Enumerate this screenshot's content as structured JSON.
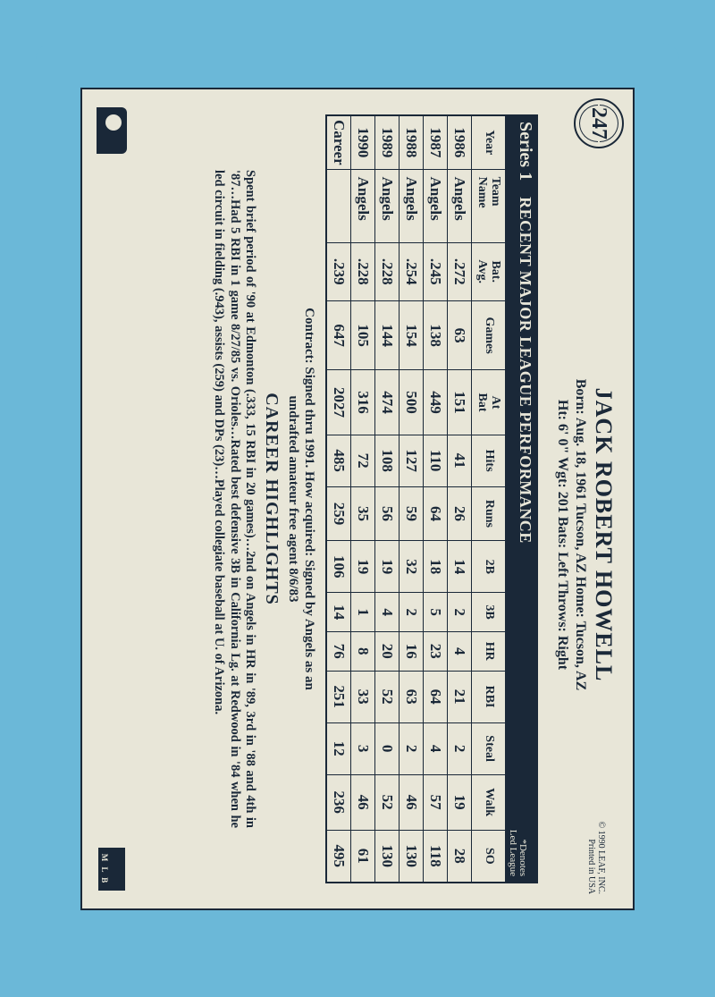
{
  "card_number": "247",
  "player": {
    "name": "JACK ROBERT HOWELL",
    "bio1": "Born: Aug. 18, 1961   Tucson, AZ   Home: Tucson, AZ",
    "bio2": "Ht: 6' 0\"   Wgt: 201   Bats: Left   Throws: Right"
  },
  "copyright": {
    "line1": "© 1990 LEAF, INC.",
    "line2": "Printed in USA"
  },
  "series": {
    "label": "Series 1",
    "title": "RECENT MAJOR LEAGUE PERFORMANCE",
    "note1": "*Denotes",
    "note2": "Led League"
  },
  "columns": [
    "Year",
    "Team Name",
    "Bat. Avg.",
    "Games",
    "At Bat",
    "Hits",
    "Runs",
    "2B",
    "3B",
    "HR",
    "RBI",
    "Steal",
    "Walk",
    "SO"
  ],
  "rows": [
    [
      "1986",
      "Angels",
      ".272",
      "63",
      "151",
      "41",
      "26",
      "14",
      "2",
      "4",
      "21",
      "2",
      "19",
      "28"
    ],
    [
      "1987",
      "Angels",
      ".245",
      "138",
      "449",
      "110",
      "64",
      "18",
      "5",
      "23",
      "64",
      "4",
      "57",
      "118"
    ],
    [
      "1988",
      "Angels",
      ".254",
      "154",
      "500",
      "127",
      "59",
      "32",
      "2",
      "16",
      "63",
      "2",
      "46",
      "130"
    ],
    [
      "1989",
      "Angels",
      ".228",
      "144",
      "474",
      "108",
      "56",
      "19",
      "4",
      "20",
      "52",
      "0",
      "52",
      "130"
    ],
    [
      "1990",
      "Angels",
      ".228",
      "105",
      "316",
      "72",
      "35",
      "19",
      "1",
      "8",
      "33",
      "3",
      "46",
      "61"
    ],
    [
      "Career",
      "",
      ".239",
      "647",
      "2027",
      "485",
      "259",
      "106",
      "14",
      "76",
      "251",
      "12",
      "236",
      "495"
    ]
  ],
  "contract": {
    "line1": "Contract: Signed thru 1991. How acquired: Signed by Angels as an",
    "line2": "undrafted amateur free agent 8/6/83"
  },
  "highlights": {
    "title": "CAREER HIGHLIGHTS",
    "body": "Spent brief period of '90 at Edmonton (.333, 15 RBI in 20 games)…2nd on Angels in HR in '89, 3rd in '88 and 4th in '87…Had 5 RBI in 1 game 8/27/85 vs. Orioles…Rated best defensive 3B in California Lg. at Redwood in '84 when he led circuit in fielding (.943), assists (259) and DPs (23)…Played collegiate baseball at U. of Arizona."
  },
  "logo_right_text": "M L B"
}
